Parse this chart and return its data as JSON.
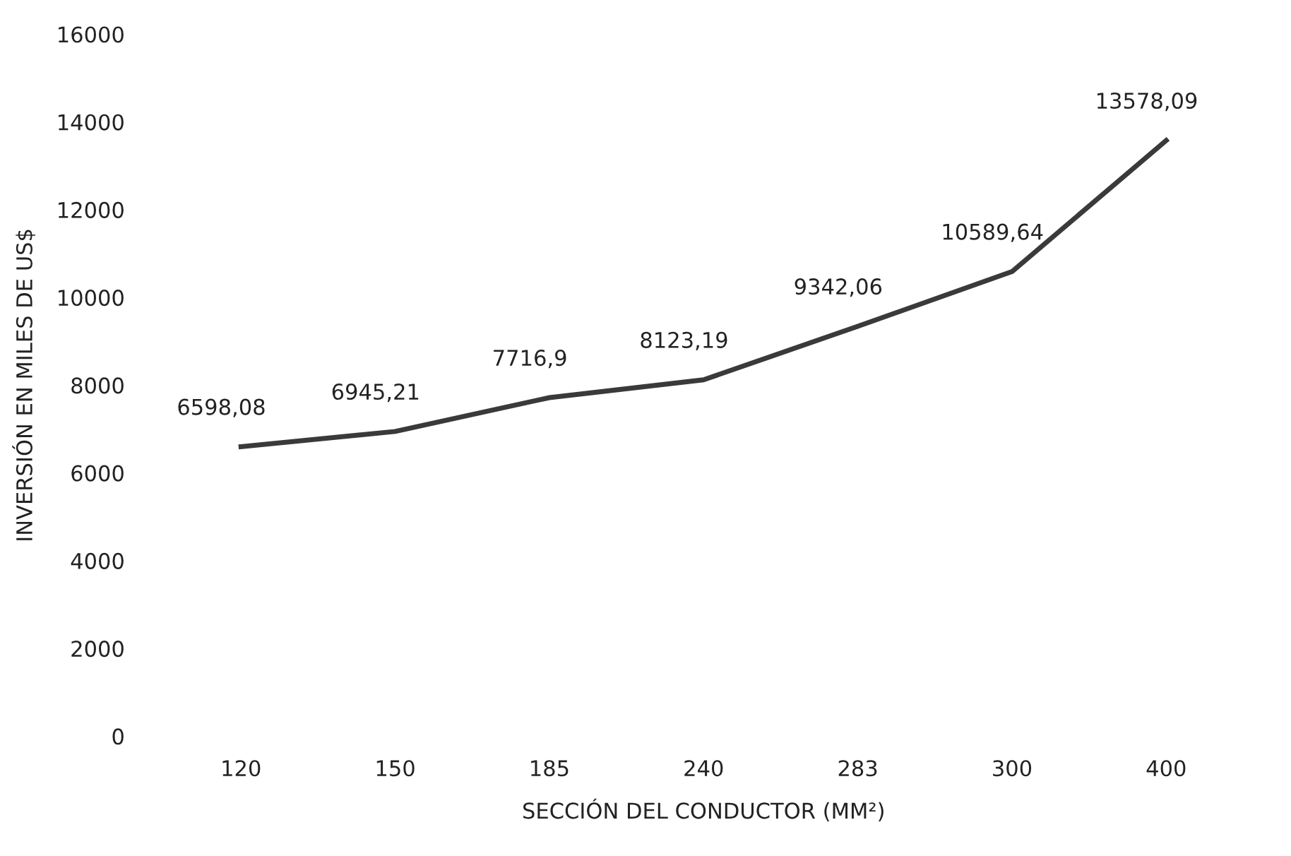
{
  "chart_data": {
    "type": "line",
    "xlabel": "SECCIÓN DEL CONDUCTOR (MM²)",
    "ylabel": "INVERSIÓN EN MILES DE US$",
    "categories": [
      "120",
      "150",
      "185",
      "240",
      "283",
      "300",
      "400"
    ],
    "series": [
      {
        "color": "#3a3a3a",
        "values": [
          6598.08,
          6945.21,
          7716.9,
          8123.19,
          9342.06,
          10589.64,
          13578.09
        ],
        "value_labels": [
          "6598,08",
          "6945,21",
          "7716,9",
          "8123,19",
          "9342,06",
          "10589,64",
          "13578,09"
        ]
      }
    ],
    "ylim": [
      0,
      16000
    ],
    "yticks": [
      0,
      2000,
      4000,
      6000,
      8000,
      10000,
      12000,
      14000,
      16000
    ],
    "grid": false,
    "legend": false,
    "marker": "none",
    "line_style": "solid"
  }
}
